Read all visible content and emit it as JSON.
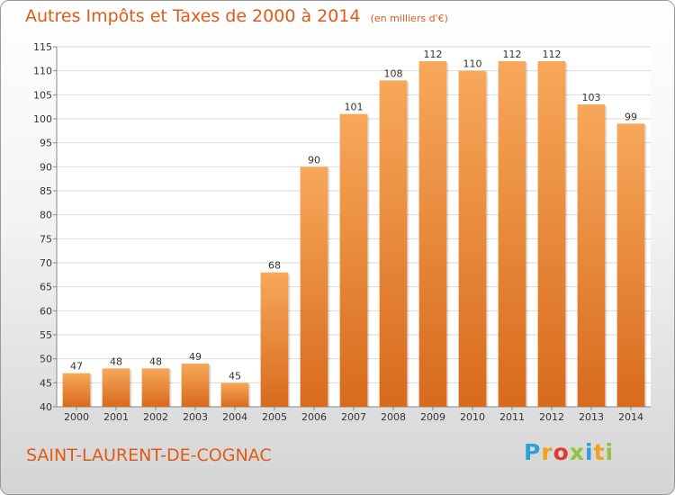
{
  "title": "Autres Impôts et Taxes de 2000 à 2014",
  "subtitle": "(en milliers d'€)",
  "commune": "SAINT-LAURENT-DE-COGNAC",
  "logo": {
    "letters": [
      "P",
      "r",
      "o",
      "x",
      "i",
      "t",
      "i"
    ],
    "colors": [
      "#2f9fd8",
      "#f0a21c",
      "#e23b2e",
      "#8fc43b",
      "#2f9fd8",
      "#f0a21c",
      "#8fc43b"
    ]
  },
  "colors": {
    "accent": "#e05a18",
    "bar_top": "#f7a85a",
    "bar_bottom": "#d86a1c",
    "grid": "#d9d9d9",
    "axis_text": "#333333"
  },
  "chart_data": {
    "type": "bar",
    "categories": [
      "2000",
      "2001",
      "2002",
      "2003",
      "2004",
      "2005",
      "2006",
      "2007",
      "2008",
      "2009",
      "2010",
      "2011",
      "2012",
      "2013",
      "2014"
    ],
    "values": [
      47,
      48,
      48,
      49,
      45,
      68,
      90,
      101,
      108,
      112,
      110,
      112,
      112,
      103,
      99
    ],
    "data_labels": [
      "47",
      "48",
      "48",
      "49",
      "45",
      "68",
      "90",
      "101",
      "108",
      "112",
      "110",
      "112",
      "112",
      "103",
      "99"
    ],
    "yticks": [
      "40",
      "45",
      "50",
      "55",
      "60",
      "65",
      "70",
      "75",
      "80",
      "85",
      "90",
      "95",
      "100",
      "105",
      "110",
      "115"
    ],
    "ylim": [
      40,
      115
    ],
    "grid": true
  }
}
